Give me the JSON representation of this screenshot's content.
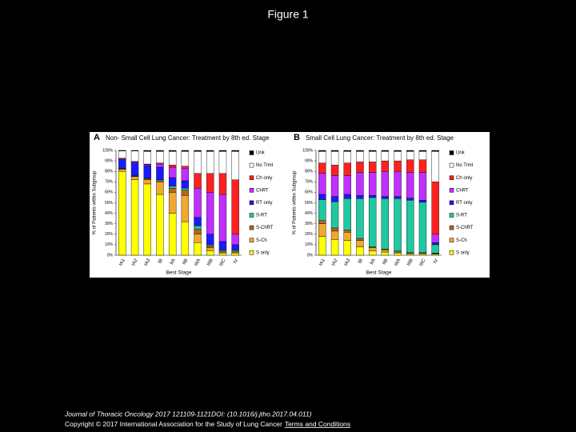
{
  "page_title": "Figure 1",
  "footer": {
    "citation": "Journal of Thoracic Oncology 2017 121109-1121DOI: (10.1016/j.jtho.2017.04.011)",
    "copyright": "Copyright © 2017 International Association for the Study of Lung Cancer",
    "link": "Terms and Conditions"
  },
  "chart_data": [
    {
      "type": "bar",
      "stacked": true,
      "panel_label": "A",
      "title": "Non- Small Cell Lung Cancer: Treatment by 8th ed. Stage",
      "ylabel": "% of Patients within Subgroup",
      "xlabel": "Best Stage",
      "legend": "right",
      "categories": [
        "IA1",
        "IA2",
        "IA3",
        "IB",
        "IIA",
        "IIB",
        "IIIA",
        "IIIB",
        "IIIC",
        "IV"
      ],
      "ylim": [
        0,
        100
      ],
      "yticks": [
        {
          "value": 0,
          "label": "0%"
        },
        {
          "value": 10,
          "label": "10%"
        },
        {
          "value": 20,
          "label": "20%"
        },
        {
          "value": 30,
          "label": "30%"
        },
        {
          "value": 40,
          "label": "40%"
        },
        {
          "value": 50,
          "label": "50%"
        },
        {
          "value": 60,
          "label": "60%"
        },
        {
          "value": 70,
          "label": "70%"
        },
        {
          "value": 80,
          "label": "80%"
        },
        {
          "value": 90,
          "label": "90%"
        },
        {
          "value": 100,
          "label": "100%"
        }
      ],
      "series": [
        {
          "name": "S only",
          "color": "#ffff00",
          "values": [
            80,
            72,
            68,
            58,
            40,
            32,
            12,
            4,
            2,
            2
          ]
        },
        {
          "name": "S-Ch",
          "color": "#f0a830",
          "values": [
            2,
            3,
            4,
            12,
            20,
            25,
            8,
            3,
            1,
            1
          ]
        },
        {
          "name": "S-ChRT",
          "color": "#b5651d",
          "values": [
            0.5,
            0.5,
            1,
            1,
            4,
            5,
            5,
            2,
            1,
            1
          ]
        },
        {
          "name": "S-RT",
          "color": "#20c8a0",
          "values": [
            0.5,
            0.5,
            0.5,
            1,
            2,
            2,
            3,
            1,
            1,
            1
          ]
        },
        {
          "name": "RT only",
          "color": "#1a1aff",
          "values": [
            8,
            12,
            12,
            12,
            8,
            7,
            8,
            10,
            8,
            5
          ]
        },
        {
          "name": "ChRT",
          "color": "#c030ff",
          "values": [
            1,
            1,
            1,
            3,
            10,
            12,
            28,
            40,
            45,
            10
          ]
        },
        {
          "name": "Ch only",
          "color": "#ff2020",
          "values": [
            0.5,
            0.5,
            0.5,
            1,
            2,
            2,
            14,
            18,
            20,
            52
          ]
        },
        {
          "name": "No Trmt",
          "color": "#ffffff",
          "values": [
            7,
            10,
            12,
            11,
            13,
            14,
            21,
            21,
            21,
            27
          ]
        },
        {
          "name": "Unk",
          "color": "#000000",
          "values": [
            0.5,
            0.5,
            1,
            1,
            1,
            1,
            1,
            1,
            1,
            1
          ]
        }
      ]
    },
    {
      "type": "bar",
      "stacked": true,
      "panel_label": "B",
      "title": "Small Cell Lung Cancer: Treatment by 8th ed. Stage",
      "ylabel": "% of Patients within Subgroup",
      "xlabel": "Best Stage",
      "legend": "right",
      "categories": [
        "IA1",
        "IA2",
        "IA3",
        "IB",
        "IIA",
        "IIB",
        "IIIA",
        "IIIB",
        "IIIC",
        "IV"
      ],
      "ylim": [
        0,
        100
      ],
      "yticks": [
        {
          "value": 0,
          "label": "0%"
        },
        {
          "value": 10,
          "label": "10%"
        },
        {
          "value": 20,
          "label": "20%"
        },
        {
          "value": 30,
          "label": "30%"
        },
        {
          "value": 40,
          "label": "40%"
        },
        {
          "value": 50,
          "label": "50%"
        },
        {
          "value": 60,
          "label": "60%"
        },
        {
          "value": 70,
          "label": "70%"
        },
        {
          "value": 80,
          "label": "80%"
        },
        {
          "value": 90,
          "label": "90%"
        },
        {
          "value": 100,
          "label": "100%"
        }
      ],
      "series": [
        {
          "name": "S only",
          "color": "#ffff00",
          "values": [
            18,
            15,
            14,
            8,
            4,
            3,
            2,
            1,
            1,
            1
          ]
        },
        {
          "name": "S-Ch",
          "color": "#f0a830",
          "values": [
            12,
            8,
            8,
            6,
            3,
            2,
            1,
            1,
            1,
            0.5
          ]
        },
        {
          "name": "S-ChRT",
          "color": "#b5651d",
          "values": [
            3,
            3,
            2,
            2,
            1,
            1,
            1,
            0.5,
            0.5,
            0.5
          ]
        },
        {
          "name": "S-RT",
          "color": "#20c8a0",
          "values": [
            20,
            25,
            30,
            38,
            47,
            48,
            50,
            50,
            48,
            8
          ]
        },
        {
          "name": "RT only",
          "color": "#1a1aff",
          "values": [
            5,
            5,
            4,
            3,
            2,
            2,
            2,
            2,
            2,
            2
          ]
        },
        {
          "name": "ChRT",
          "color": "#c030ff",
          "values": [
            20,
            20,
            18,
            22,
            22,
            24,
            24,
            24.5,
            26.5,
            8
          ]
        },
        {
          "name": "Ch only",
          "color": "#ff2020",
          "values": [
            10,
            10,
            12,
            10,
            10,
            10,
            10,
            12,
            12,
            50
          ]
        },
        {
          "name": "No Trmt",
          "color": "#ffffff",
          "values": [
            11,
            13,
            11,
            10,
            10,
            9,
            9,
            8,
            8,
            29
          ]
        },
        {
          "name": "Unk",
          "color": "#000000",
          "values": [
            1,
            1,
            1,
            1,
            1,
            1,
            1,
            1,
            1,
            1
          ]
        }
      ]
    }
  ]
}
